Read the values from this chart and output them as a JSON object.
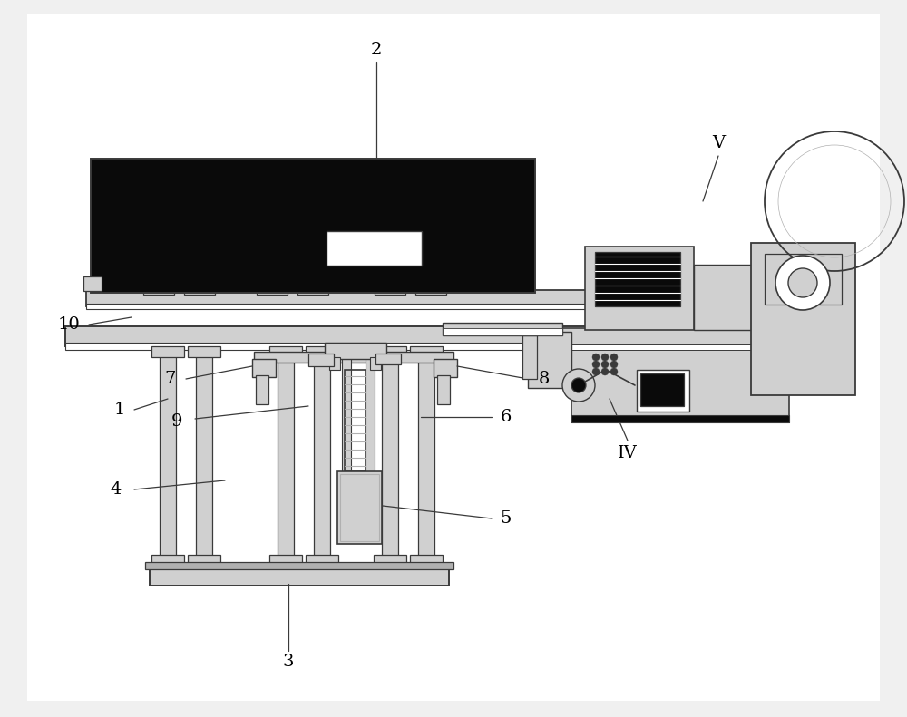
{
  "bg_color": "#f0f0f0",
  "line_color": "#3a3a3a",
  "dark_fill": "#0a0a0a",
  "light_gray": "#d0d0d0",
  "mid_gray": "#b0b0b0",
  "white": "#ffffff",
  "fig_width": 10.0,
  "fig_height": 7.91,
  "dpi": 100
}
